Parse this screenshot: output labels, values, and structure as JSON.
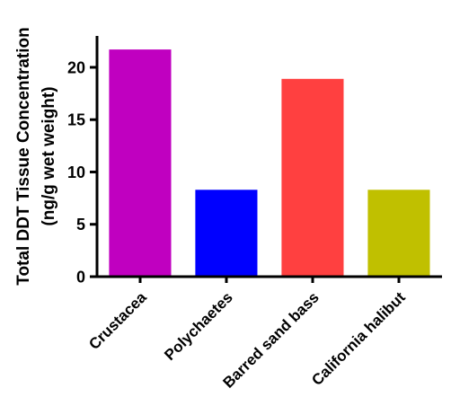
{
  "chart_data": {
    "type": "bar",
    "ylabel_line1": "Total DDT Tissue Concentration",
    "ylabel_line2": "(ng/g wet weight)",
    "xlabel": "",
    "ylim": [
      0,
      23
    ],
    "yticks": [
      0,
      5,
      10,
      15,
      20
    ],
    "grid": false,
    "legend": "none",
    "categories": [
      "Crustacea",
      "Polychaetes",
      "Barred sand bass",
      "California halibut"
    ],
    "values": [
      21.7,
      8.3,
      18.9,
      8.3
    ],
    "colors": [
      "#c000c0",
      "#0000ff",
      "#ff4040",
      "#c0c000"
    ]
  }
}
